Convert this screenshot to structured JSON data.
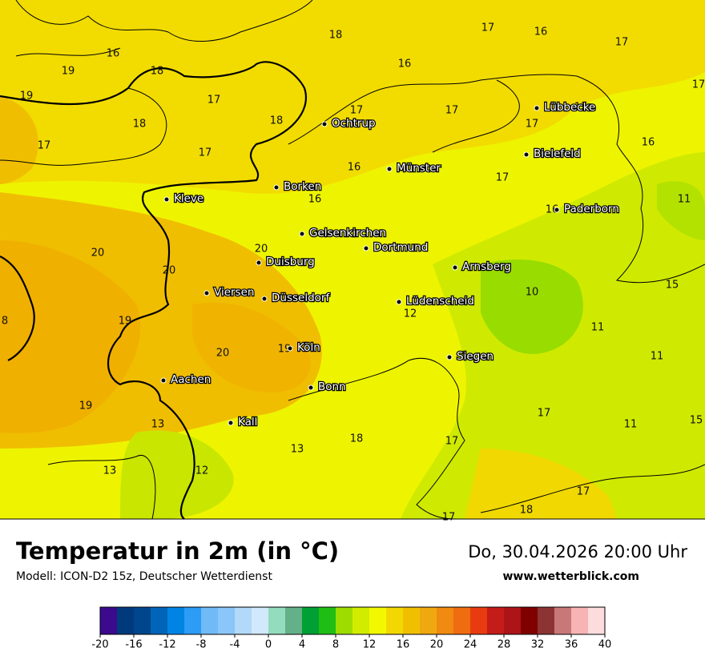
{
  "map": {
    "cities": [
      "Ochtrup",
      "Lübbecke",
      "Bielefeld",
      "Münster",
      "Borken",
      "Kleve",
      "Paderborn",
      "Gelsenkirchen",
      "Dortmund",
      "Duisburg",
      "Arnsberg",
      "Viersen",
      "Düsseldorf",
      "Lüdenscheid",
      "Köln",
      "Siegen",
      "Aachen",
      "Bonn",
      "Kall"
    ],
    "temperatures": [
      18,
      17,
      16,
      17,
      16,
      16,
      19,
      18,
      17,
      19,
      17,
      17,
      17,
      17,
      17,
      18,
      18,
      17,
      17,
      16,
      16,
      17,
      16,
      11,
      16,
      20,
      20,
      20,
      15,
      10,
      8,
      19,
      12,
      11,
      20,
      19,
      11,
      19,
      17,
      13,
      11,
      15,
      18,
      17,
      13,
      13,
      12,
      17,
      18,
      17
    ]
  },
  "legend": {
    "title": "Temperatur in 2m (in °C)",
    "model": "Modell: ICON-D2 15z, Deutscher Wetterdienst",
    "valid_time": "Do, 30.04.2026 20:00 Uhr",
    "website": "www.wetterblick.com"
  },
  "colorbar": {
    "range": [
      -20,
      40
    ],
    "ticks": [
      -20,
      -16,
      -12,
      -8,
      -4,
      0,
      4,
      8,
      12,
      16,
      20,
      24,
      28,
      32,
      36,
      40
    ],
    "colors": [
      "#3c0a8c",
      "#003a7c",
      "#00468c",
      "#0064b8",
      "#0084e4",
      "#2c9cf4",
      "#70baf8",
      "#8ac6fa",
      "#b2d8fa",
      "#d2e8fc",
      "#94dcbe",
      "#64b088",
      "#00a034",
      "#20be14",
      "#9edc00",
      "#d2ec00",
      "#f2f800",
      "#f2d800",
      "#f0c000",
      "#f0a810",
      "#f08a10",
      "#f06c10",
      "#e83c10",
      "#c41c18",
      "#ac1418",
      "#800000",
      "#8c3434",
      "#c87878",
      "#f8b4b4",
      "#fcdcdc"
    ]
  }
}
